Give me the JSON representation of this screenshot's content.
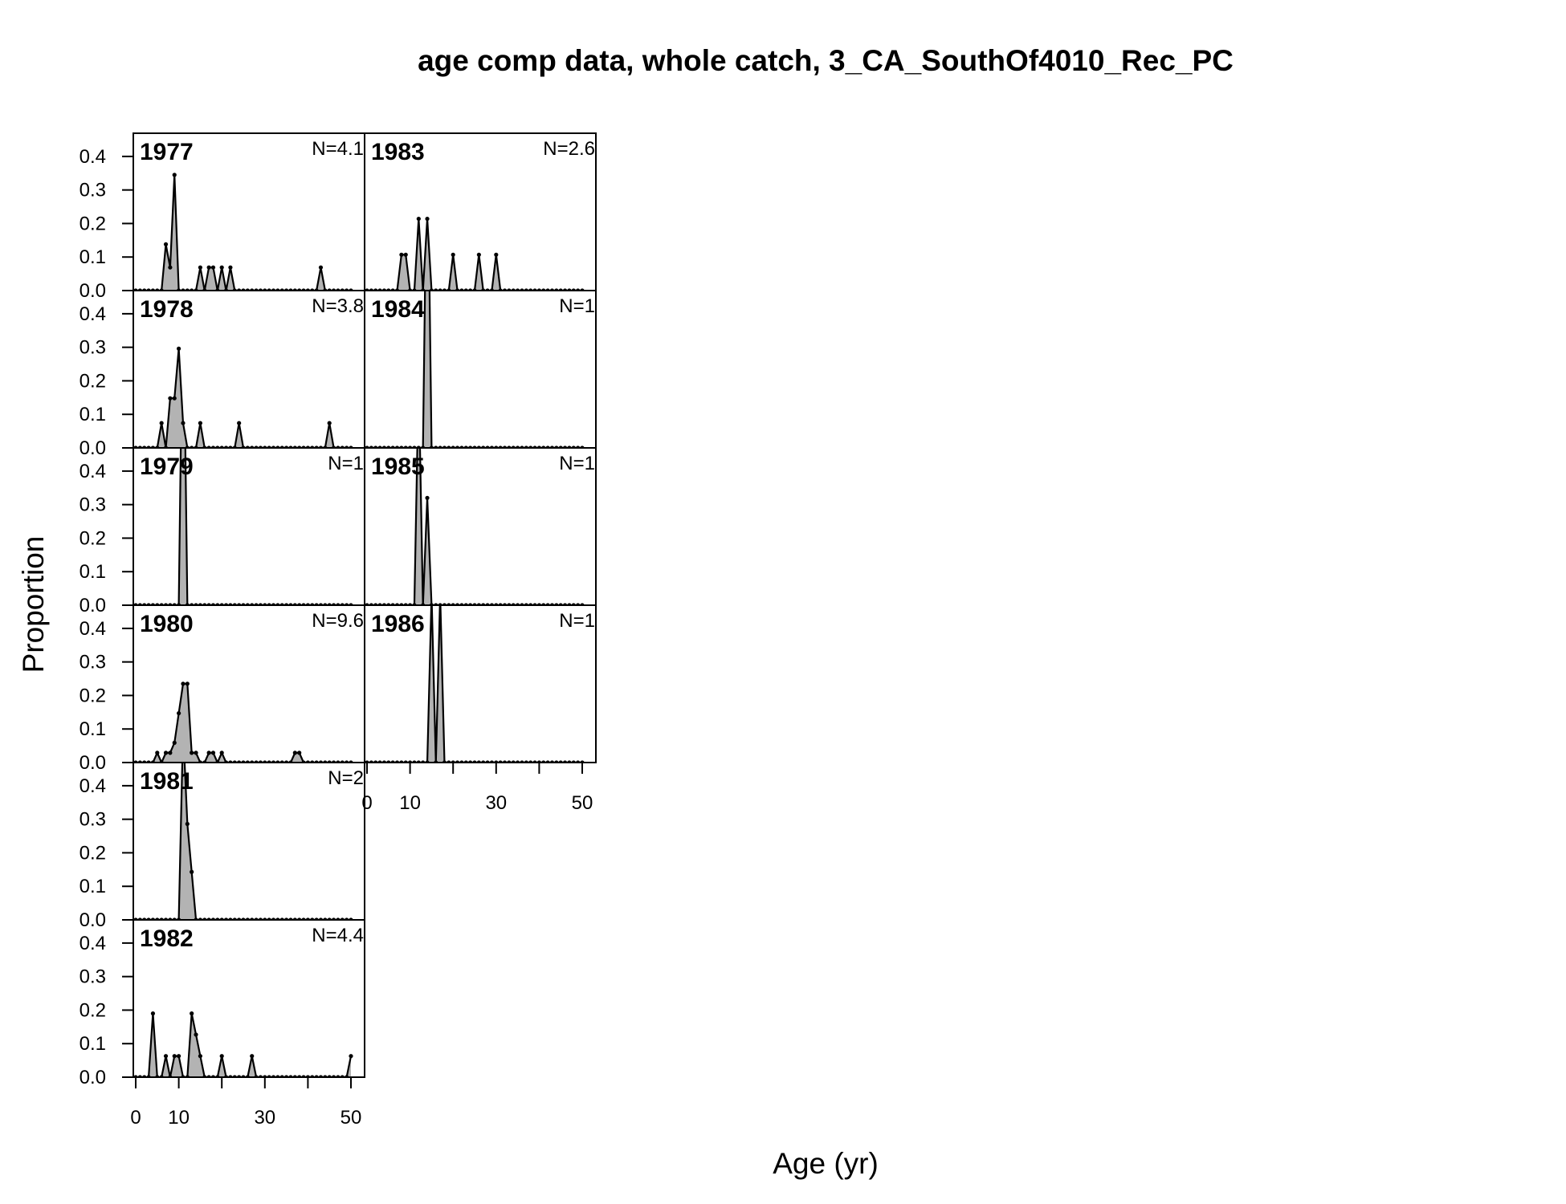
{
  "chart_data": {
    "type": "area",
    "title": "age comp data, whole catch, 3_CA_SouthOf4010_Rec_PC",
    "xlabel": "Age (yr)",
    "ylabel": "Proportion",
    "xlim": [
      0,
      50
    ],
    "ylim": [
      0,
      0.45
    ],
    "x_ticks": [
      0,
      10,
      20,
      30,
      40,
      50
    ],
    "x_tick_labels": [
      "0",
      "10",
      "30",
      "50"
    ],
    "y_ticks": [
      0,
      0.1,
      0.2,
      0.3,
      0.4
    ],
    "y_tick_labels": [
      "0.0",
      "0.1",
      "0.2",
      "0.3",
      "0.4"
    ],
    "colors": {
      "fill": "#b3b3b3",
      "line": "#000000"
    },
    "panels": [
      {
        "year": "1977",
        "n": "N=4.1",
        "values": {
          "7": 0.138,
          "8": 0.069,
          "9": 0.345,
          "15": 0.069,
          "17": 0.069,
          "18": 0.069,
          "20": 0.069,
          "22": 0.069,
          "43": 0.069
        }
      },
      {
        "year": "1978",
        "n": "N=3.8",
        "values": {
          "6": 0.074,
          "8": 0.148,
          "9": 0.148,
          "10": 0.296,
          "11": 0.074,
          "15": 0.074,
          "24": 0.074,
          "45": 0.074
        }
      },
      {
        "year": "1979",
        "n": "N=1",
        "values": {
          "11": 1.0
        }
      },
      {
        "year": "1980",
        "n": "N=9.6",
        "values": {
          "5": 0.029,
          "7": 0.029,
          "8": 0.029,
          "9": 0.059,
          "10": 0.147,
          "11": 0.235,
          "12": 0.235,
          "13": 0.029,
          "14": 0.029,
          "17": 0.029,
          "18": 0.029,
          "20": 0.029,
          "37": 0.029,
          "38": 0.029
        }
      },
      {
        "year": "1981",
        "n": "N=2",
        "values": {
          "11": 0.571,
          "12": 0.286,
          "13": 0.143
        }
      },
      {
        "year": "1982",
        "n": "N=4.4",
        "values": {
          "4": 0.19,
          "7": 0.063,
          "9": 0.063,
          "10": 0.063,
          "13": 0.19,
          "14": 0.127,
          "15": 0.063,
          "20": 0.063,
          "27": 0.063,
          "50": 0.063
        }
      },
      {
        "year": "1983",
        "n": "N=2.6",
        "values": {
          "8": 0.107,
          "9": 0.107,
          "12": 0.214,
          "14": 0.214,
          "20": 0.107,
          "26": 0.107,
          "30": 0.107
        }
      },
      {
        "year": "1984",
        "n": "N=1",
        "values": {
          "14": 1.0
        }
      },
      {
        "year": "1985",
        "n": "N=1",
        "values": {
          "12": 0.68,
          "14": 0.32
        }
      },
      {
        "year": "1986",
        "n": "N=1",
        "values": {
          "15": 0.5,
          "17": 0.5
        }
      }
    ]
  }
}
